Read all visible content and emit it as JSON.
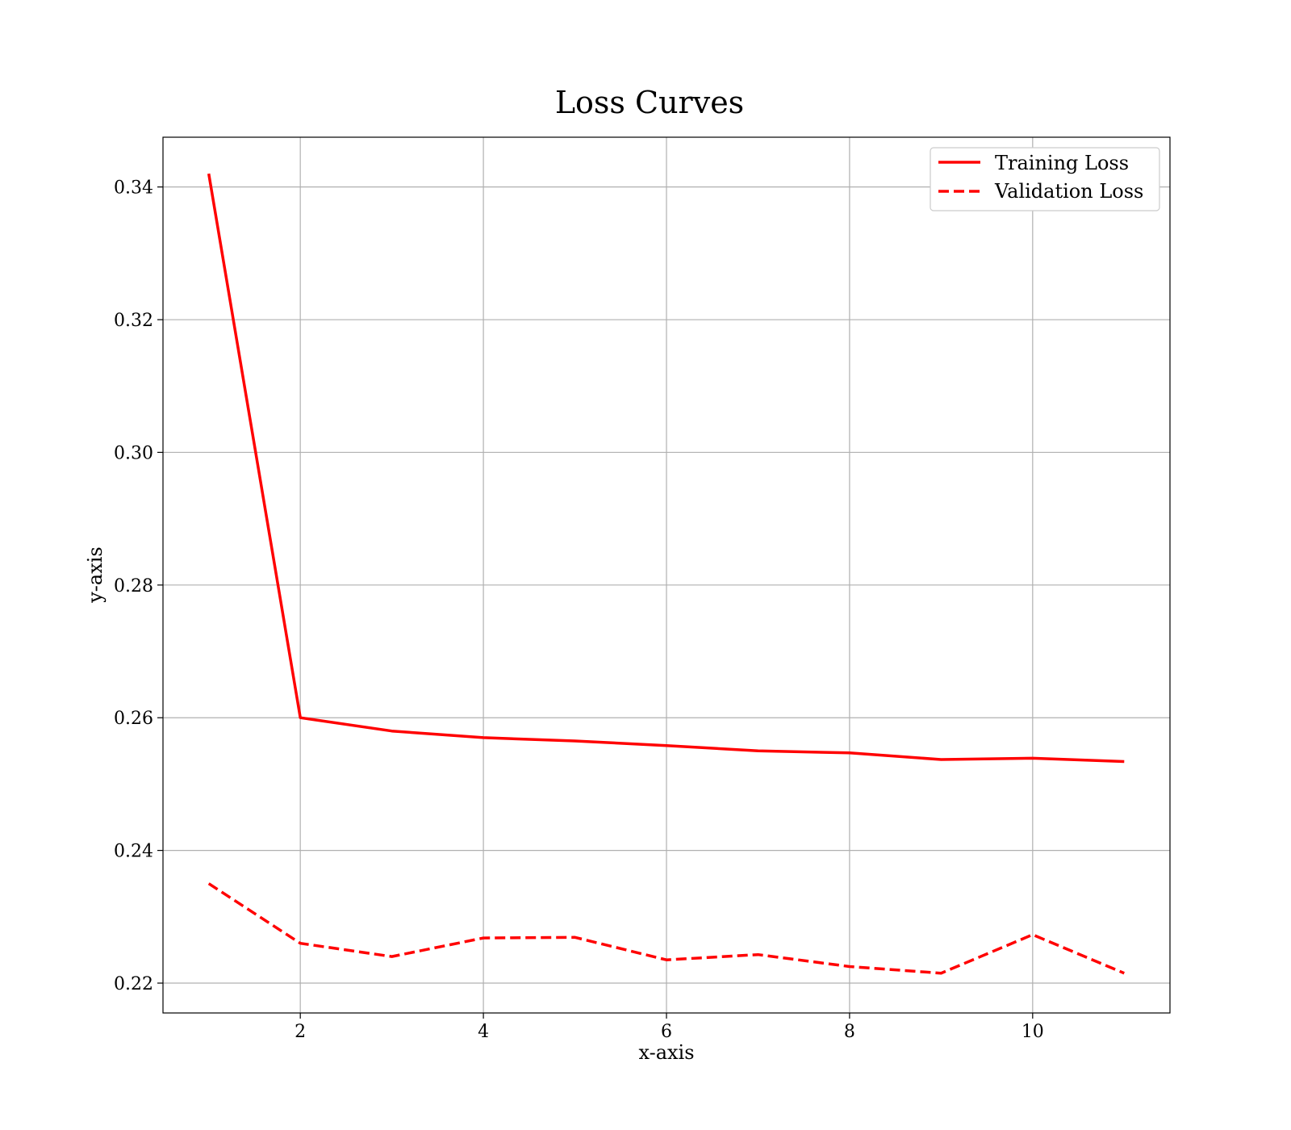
{
  "chart_data": {
    "type": "line",
    "title": "Loss Curves",
    "xlabel": "x-axis",
    "ylabel": "y-axis",
    "x": [
      1,
      2,
      3,
      4,
      5,
      6,
      7,
      8,
      9,
      10,
      11
    ],
    "series": [
      {
        "name": "Training Loss",
        "style": "solid",
        "color": "#ff0000",
        "values": [
          0.342,
          0.26,
          0.258,
          0.257,
          0.2565,
          0.2558,
          0.255,
          0.2547,
          0.2537,
          0.2539,
          0.2534
        ]
      },
      {
        "name": "Validation Loss",
        "style": "dashed",
        "color": "#ff0000",
        "values": [
          0.235,
          0.226,
          0.224,
          0.2268,
          0.2269,
          0.2235,
          0.2243,
          0.2225,
          0.2215,
          0.2273,
          0.2215
        ]
      }
    ],
    "xlim": [
      0.5,
      11.5
    ],
    "ylim": [
      0.2155,
      0.3475
    ],
    "xticks": [
      2,
      4,
      6,
      8,
      10
    ],
    "xtick_labels": [
      "2",
      "4",
      "6",
      "8",
      "10"
    ],
    "yticks": [
      0.22,
      0.24,
      0.26,
      0.28,
      0.3,
      0.32,
      0.34
    ],
    "ytick_labels": [
      "0.22",
      "0.24",
      "0.26",
      "0.28",
      "0.30",
      "0.32",
      "0.34"
    ],
    "grid": true,
    "legend_position": "top-right"
  }
}
